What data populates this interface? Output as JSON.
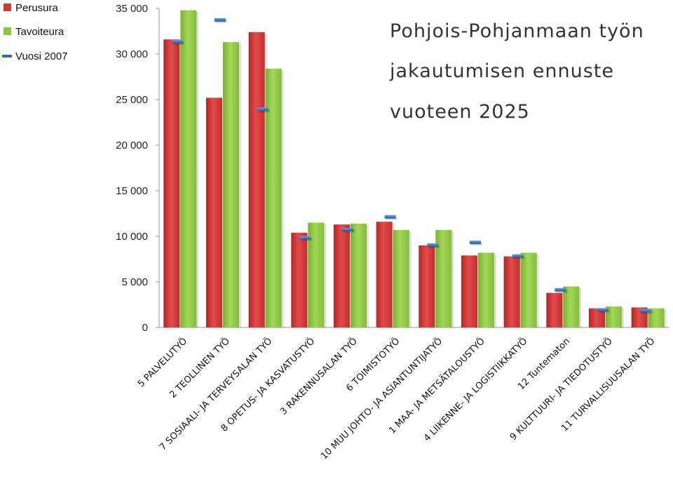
{
  "chart_data": {
    "type": "bar",
    "title_lines": [
      "Pohjois-Pohjanmaan työn",
      "jakautumisen ennuste",
      "vuoteen 2025"
    ],
    "ylim": [
      0,
      35000
    ],
    "yticks": [
      0,
      5000,
      10000,
      15000,
      20000,
      25000,
      30000,
      35000
    ],
    "ytick_labels": [
      "0",
      "5 000",
      "10 000",
      "15 000",
      "20 000",
      "25 000",
      "30 000",
      "35 000"
    ],
    "legend_position": "top-left",
    "categories": [
      "5 PALVELUTYÖ",
      "2 TEOLLINEN TYÖ",
      "7 SOSIAALI- JA TERVEYSALAN TYÖ",
      "8 OPETUS- JA KASVATUSTYÖ",
      "3 RAKENNUSALAN TYÖ",
      "6 TOIMISTOTYÖ",
      "10 MUU JOHTO- JA ASIANTUNTIJATYÖ",
      "1 MAA- JA METSÄTALOUSTYÖ",
      "4 LIIKENNE- JA LOGISTIIKKATYÖ",
      "12 Tuntematon",
      "9 KULTTUURI- JA TIEDOTUSTYÖ",
      "11 TURVALLISUUSALAN TYÖ"
    ],
    "series": [
      {
        "name": "Perusura",
        "kind": "bar",
        "color": "#d23a3a",
        "values": [
          31600,
          25200,
          32400,
          10400,
          11300,
          11600,
          9000,
          7900,
          7800,
          3800,
          2100,
          2200
        ]
      },
      {
        "name": "Tavoiteura",
        "kind": "bar",
        "color": "#8cc63f",
        "values": [
          34800,
          31300,
          28400,
          11500,
          11400,
          10700,
          10700,
          8200,
          8200,
          4500,
          2300,
          2100
        ]
      },
      {
        "name": "Vuosi 2007",
        "kind": "marker",
        "color": "#2f6fb8",
        "values": [
          31300,
          33700,
          23900,
          9800,
          10700,
          12100,
          9000,
          9300,
          7800,
          4100,
          1900,
          1800
        ]
      }
    ]
  }
}
